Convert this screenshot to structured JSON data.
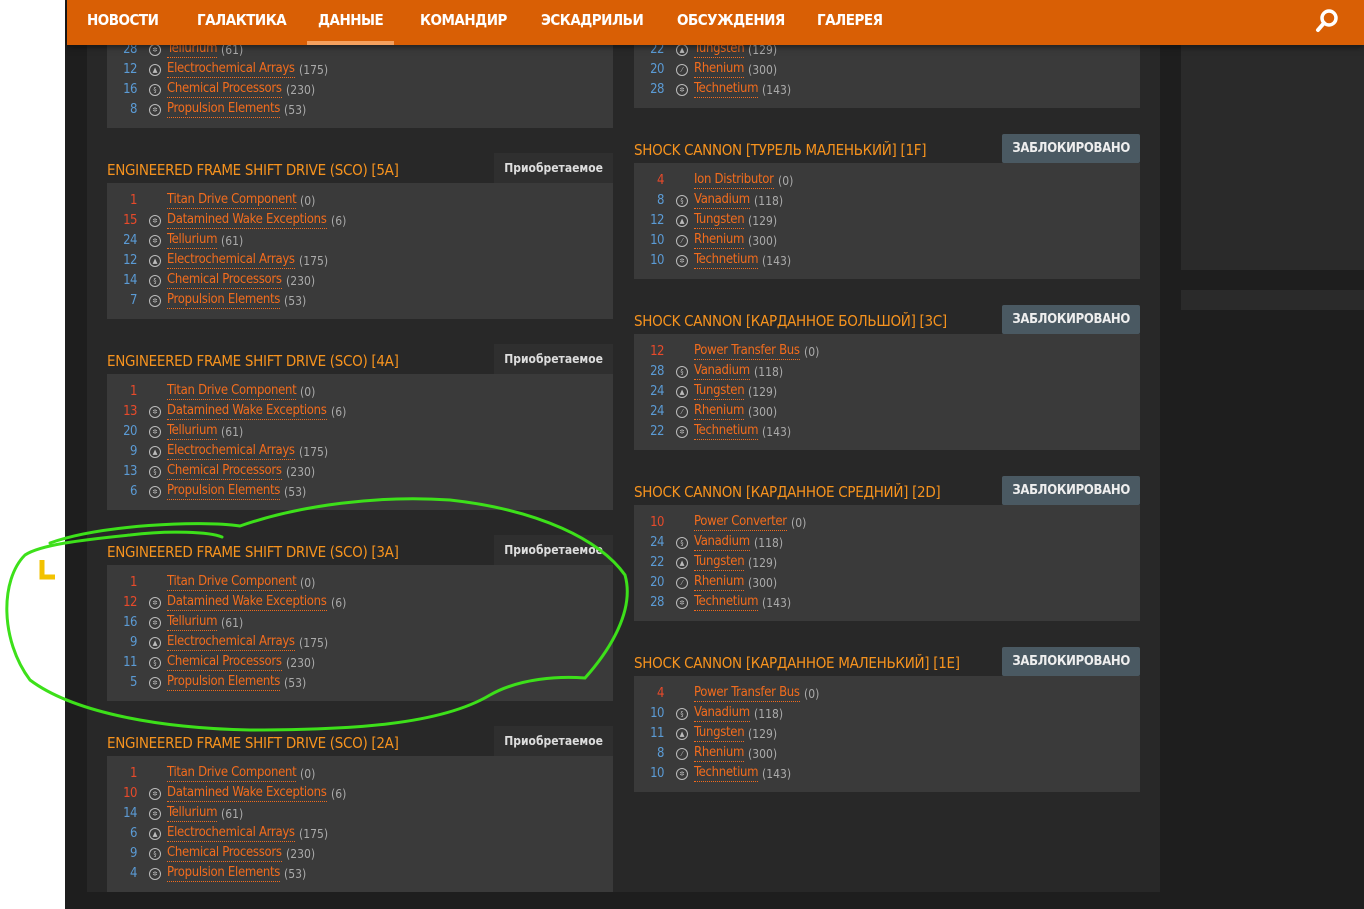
{
  "nav": {
    "items": [
      "НОВОСТИ",
      "ГАЛАКТИКА",
      "ДАННЫЕ",
      "КОМАНДИР",
      "ЭСКАДРИЛЬИ",
      "ОБСУЖДЕНИЯ",
      "ГАЛЕРЕЯ"
    ],
    "active": "ДАННЫЕ",
    "search_icon": "search-icon"
  },
  "colors": {
    "nav": "#d95f05",
    "title": "#f7931e",
    "link": "#f26c1d",
    "count_red": "#e84a2a",
    "count_blue": "#5b9bd5"
  },
  "left_cards": [
    {
      "title": "",
      "badge": "",
      "rows": [
        {
          "n": "28",
          "c": "blue",
          "icon": "hex",
          "name": "Tellurium",
          "g": "(61)"
        },
        {
          "n": "12",
          "c": "blue",
          "icon": "tri",
          "name": "Electrochemical Arrays",
          "g": "(175)"
        },
        {
          "n": "16",
          "c": "blue",
          "icon": "swirl",
          "name": "Chemical Processors",
          "g": "(230)"
        },
        {
          "n": "8",
          "c": "blue",
          "icon": "hex",
          "name": "Propulsion Elements",
          "g": "(53)"
        }
      ]
    },
    {
      "title": "ENGINEERED FRAME SHIFT DRIVE (SCO) [5A]",
      "badge": "Приобретаемое",
      "rows": [
        {
          "n": "1",
          "c": "red",
          "icon": "",
          "name": "Titan Drive Component",
          "g": "(0)"
        },
        {
          "n": "15",
          "c": "red",
          "icon": "hex",
          "name": "Datamined Wake Exceptions",
          "g": "(6)"
        },
        {
          "n": "24",
          "c": "blue",
          "icon": "hex",
          "name": "Tellurium",
          "g": "(61)"
        },
        {
          "n": "12",
          "c": "blue",
          "icon": "tri",
          "name": "Electrochemical Arrays",
          "g": "(175)"
        },
        {
          "n": "14",
          "c": "blue",
          "icon": "swirl",
          "name": "Chemical Processors",
          "g": "(230)"
        },
        {
          "n": "7",
          "c": "blue",
          "icon": "hex",
          "name": "Propulsion Elements",
          "g": "(53)"
        }
      ]
    },
    {
      "title": "ENGINEERED FRAME SHIFT DRIVE (SCO) [4A]",
      "badge": "Приобретаемое",
      "rows": [
        {
          "n": "1",
          "c": "red",
          "icon": "",
          "name": "Titan Drive Component",
          "g": "(0)"
        },
        {
          "n": "13",
          "c": "red",
          "icon": "hex",
          "name": "Datamined Wake Exceptions",
          "g": "(6)"
        },
        {
          "n": "20",
          "c": "blue",
          "icon": "hex",
          "name": "Tellurium",
          "g": "(61)"
        },
        {
          "n": "9",
          "c": "blue",
          "icon": "tri",
          "name": "Electrochemical Arrays",
          "g": "(175)"
        },
        {
          "n": "13",
          "c": "blue",
          "icon": "swirl",
          "name": "Chemical Processors",
          "g": "(230)"
        },
        {
          "n": "6",
          "c": "blue",
          "icon": "hex",
          "name": "Propulsion Elements",
          "g": "(53)"
        }
      ]
    },
    {
      "title": "ENGINEERED FRAME SHIFT DRIVE (SCO) [3A]",
      "badge": "Приобретаемое",
      "rows": [
        {
          "n": "1",
          "c": "red",
          "icon": "",
          "name": "Titan Drive Component",
          "g": "(0)"
        },
        {
          "n": "12",
          "c": "red",
          "icon": "hex",
          "name": "Datamined Wake Exceptions",
          "g": "(6)"
        },
        {
          "n": "16",
          "c": "blue",
          "icon": "hex",
          "name": "Tellurium",
          "g": "(61)"
        },
        {
          "n": "9",
          "c": "blue",
          "icon": "tri",
          "name": "Electrochemical Arrays",
          "g": "(175)"
        },
        {
          "n": "11",
          "c": "blue",
          "icon": "swirl",
          "name": "Chemical Processors",
          "g": "(230)"
        },
        {
          "n": "5",
          "c": "blue",
          "icon": "hex",
          "name": "Propulsion Elements",
          "g": "(53)"
        }
      ]
    },
    {
      "title": "ENGINEERED FRAME SHIFT DRIVE (SCO) [2A]",
      "badge": "Приобретаемое",
      "rows": [
        {
          "n": "1",
          "c": "red",
          "icon": "",
          "name": "Titan Drive Component",
          "g": "(0)"
        },
        {
          "n": "10",
          "c": "red",
          "icon": "hex",
          "name": "Datamined Wake Exceptions",
          "g": "(6)"
        },
        {
          "n": "14",
          "c": "blue",
          "icon": "hex",
          "name": "Tellurium",
          "g": "(61)"
        },
        {
          "n": "6",
          "c": "blue",
          "icon": "tri",
          "name": "Electrochemical Arrays",
          "g": "(175)"
        },
        {
          "n": "9",
          "c": "blue",
          "icon": "swirl",
          "name": "Chemical Processors",
          "g": "(230)"
        },
        {
          "n": "4",
          "c": "blue",
          "icon": "hex",
          "name": "Propulsion Elements",
          "g": "(53)"
        }
      ]
    }
  ],
  "right_cards": [
    {
      "title": "",
      "badge": "",
      "rows": [
        {
          "n": "22",
          "c": "blue",
          "icon": "tri",
          "name": "Tungsten",
          "g": "(129)"
        },
        {
          "n": "20",
          "c": "blue",
          "icon": "dash",
          "name": "Rhenium",
          "g": "(300)"
        },
        {
          "n": "28",
          "c": "blue",
          "icon": "hex",
          "name": "Technetium",
          "g": "(143)"
        }
      ]
    },
    {
      "title": "SHOCK CANNON [ТУРЕЛЬ МАЛЕНЬКИЙ] [1F]",
      "badge": "ЗАБЛОКИРОВАНО",
      "rows": [
        {
          "n": "4",
          "c": "red",
          "icon": "",
          "name": "Ion Distributor",
          "g": "(0)"
        },
        {
          "n": "8",
          "c": "blue",
          "icon": "swirl",
          "name": "Vanadium",
          "g": "(118)"
        },
        {
          "n": "12",
          "c": "blue",
          "icon": "tri",
          "name": "Tungsten",
          "g": "(129)"
        },
        {
          "n": "10",
          "c": "blue",
          "icon": "dash",
          "name": "Rhenium",
          "g": "(300)"
        },
        {
          "n": "10",
          "c": "blue",
          "icon": "hex",
          "name": "Technetium",
          "g": "(143)"
        }
      ]
    },
    {
      "title": "SHOCK CANNON [КАРДАННОЕ БОЛЬШОЙ] [3C]",
      "badge": "ЗАБЛОКИРОВАНО",
      "rows": [
        {
          "n": "12",
          "c": "red",
          "icon": "",
          "name": "Power Transfer Bus",
          "g": "(0)"
        },
        {
          "n": "28",
          "c": "blue",
          "icon": "swirl",
          "name": "Vanadium",
          "g": "(118)"
        },
        {
          "n": "24",
          "c": "blue",
          "icon": "tri",
          "name": "Tungsten",
          "g": "(129)"
        },
        {
          "n": "24",
          "c": "blue",
          "icon": "dash",
          "name": "Rhenium",
          "g": "(300)"
        },
        {
          "n": "22",
          "c": "blue",
          "icon": "hex",
          "name": "Technetium",
          "g": "(143)"
        }
      ]
    },
    {
      "title": "SHOCK CANNON [КАРДАННОЕ СРЕДНИЙ] [2D]",
      "badge": "ЗАБЛОКИРОВАНО",
      "rows": [
        {
          "n": "10",
          "c": "red",
          "icon": "",
          "name": "Power Converter",
          "g": "(0)"
        },
        {
          "n": "24",
          "c": "blue",
          "icon": "swirl",
          "name": "Vanadium",
          "g": "(118)"
        },
        {
          "n": "22",
          "c": "blue",
          "icon": "tri",
          "name": "Tungsten",
          "g": "(129)"
        },
        {
          "n": "20",
          "c": "blue",
          "icon": "dash",
          "name": "Rhenium",
          "g": "(300)"
        },
        {
          "n": "28",
          "c": "blue",
          "icon": "hex",
          "name": "Technetium",
          "g": "(143)"
        }
      ]
    },
    {
      "title": "SHOCK CANNON [КАРДАННОЕ МАЛЕНЬКИЙ] [1E]",
      "badge": "ЗАБЛОКИРОВАНО",
      "rows": [
        {
          "n": "4",
          "c": "red",
          "icon": "",
          "name": "Power Transfer Bus",
          "g": "(0)"
        },
        {
          "n": "10",
          "c": "blue",
          "icon": "swirl",
          "name": "Vanadium",
          "g": "(118)"
        },
        {
          "n": "11",
          "c": "blue",
          "icon": "tri",
          "name": "Tungsten",
          "g": "(129)"
        },
        {
          "n": "8",
          "c": "blue",
          "icon": "dash",
          "name": "Rhenium",
          "g": "(300)"
        },
        {
          "n": "10",
          "c": "blue",
          "icon": "hex",
          "name": "Technetium",
          "g": "(143)"
        }
      ]
    }
  ]
}
